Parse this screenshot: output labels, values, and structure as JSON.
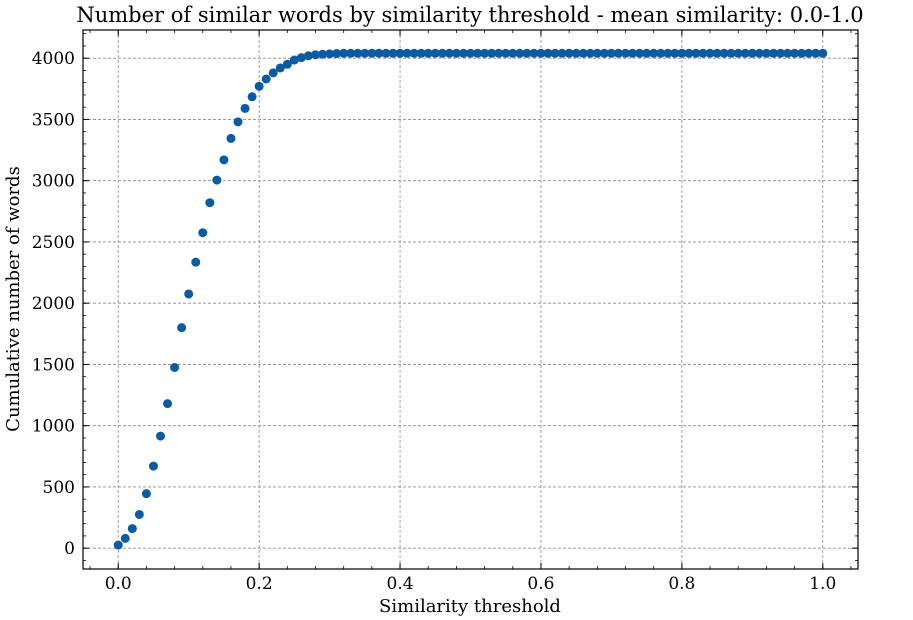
{
  "chart_data": {
    "type": "scatter",
    "title": "Number of similar words by similarity threshold - mean similarity: 0.0-1.0",
    "xlabel": "Similarity threshold",
    "ylabel": "Cumulative number of words",
    "xlim": [
      -0.05,
      1.05
    ],
    "ylim": [
      -170,
      4230
    ],
    "xticks": [
      0.0,
      0.2,
      0.4,
      0.6,
      0.8,
      1.0
    ],
    "xtick_labels": [
      "0.0",
      "0.2",
      "0.4",
      "0.6",
      "0.8",
      "1.0"
    ],
    "yticks": [
      0,
      500,
      1000,
      1500,
      2000,
      2500,
      3000,
      3500,
      4000
    ],
    "ytick_labels": [
      "0",
      "500",
      "1000",
      "1500",
      "2000",
      "2500",
      "3000",
      "3500",
      "4000"
    ],
    "grid": true,
    "marker_color": "#0a5ba3",
    "x": [
      0.0,
      0.01,
      0.02,
      0.03,
      0.04,
      0.05,
      0.06,
      0.07,
      0.08,
      0.09,
      0.1,
      0.11,
      0.12,
      0.13,
      0.14,
      0.15,
      0.16,
      0.17,
      0.18,
      0.19,
      0.2,
      0.21,
      0.22,
      0.23,
      0.24,
      0.25,
      0.26,
      0.27,
      0.28,
      0.29,
      0.3,
      0.31,
      0.32,
      0.33,
      0.34,
      0.35,
      0.36,
      0.37,
      0.38,
      0.39,
      0.4,
      0.41,
      0.42,
      0.43,
      0.44,
      0.45,
      0.46,
      0.47,
      0.48,
      0.49,
      0.5,
      0.51,
      0.52,
      0.53,
      0.54,
      0.55,
      0.56,
      0.57,
      0.58,
      0.59,
      0.6,
      0.61,
      0.62,
      0.63,
      0.64,
      0.65,
      0.66,
      0.67,
      0.68,
      0.69,
      0.7,
      0.71,
      0.72,
      0.73,
      0.74,
      0.75,
      0.76,
      0.77,
      0.78,
      0.79,
      0.8,
      0.81,
      0.82,
      0.83,
      0.84,
      0.85,
      0.86,
      0.87,
      0.88,
      0.89,
      0.9,
      0.91,
      0.92,
      0.93,
      0.94,
      0.95,
      0.96,
      0.97,
      0.98,
      0.99,
      1.0
    ],
    "y": [
      25,
      80,
      160,
      275,
      445,
      670,
      915,
      1180,
      1475,
      1800,
      2075,
      2335,
      2575,
      2820,
      3005,
      3170,
      3345,
      3480,
      3590,
      3685,
      3770,
      3830,
      3880,
      3920,
      3950,
      3985,
      4005,
      4020,
      4028,
      4032,
      4035,
      4038,
      4040,
      4040,
      4040,
      4040,
      4040,
      4040,
      4040,
      4040,
      4040,
      4040,
      4040,
      4040,
      4040,
      4040,
      4040,
      4040,
      4040,
      4040,
      4040,
      4040,
      4040,
      4040,
      4040,
      4040,
      4040,
      4040,
      4040,
      4040,
      4040,
      4040,
      4040,
      4040,
      4040,
      4040,
      4040,
      4040,
      4040,
      4040,
      4040,
      4040,
      4040,
      4040,
      4040,
      4040,
      4040,
      4040,
      4040,
      4040,
      4040,
      4040,
      4040,
      4040,
      4040,
      4040,
      4040,
      4040,
      4040,
      4040,
      4040,
      4040,
      4040,
      4040,
      4040,
      4040,
      4040,
      4040,
      4040,
      4040,
      4040
    ]
  }
}
